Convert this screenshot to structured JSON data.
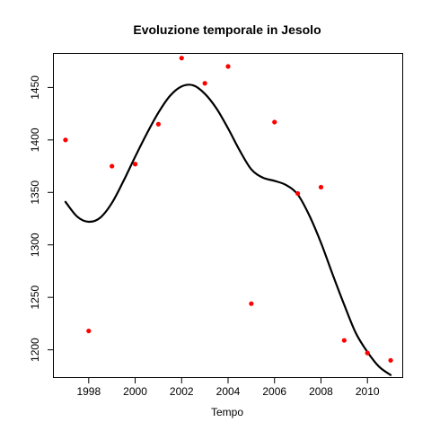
{
  "chart_data": {
    "type": "scatter",
    "title": "Evoluzione temporale in Jesolo",
    "xlabel": "Tempo",
    "ylabel": "",
    "xlim": [
      1996.5,
      2011.5
    ],
    "ylim": [
      1174,
      1482
    ],
    "x_ticks": [
      1998,
      2000,
      2002,
      2004,
      2006,
      2008,
      2010
    ],
    "y_ticks": [
      1200,
      1250,
      1300,
      1350,
      1400,
      1450
    ],
    "grid": false,
    "colors": {
      "points": "#ff0000",
      "line": "#000000"
    },
    "points": {
      "x": [
        1997,
        1998,
        1999,
        2000,
        2001,
        2002,
        2003,
        2004,
        2005,
        2006,
        2007,
        2008,
        2009,
        2010,
        2011
      ],
      "y": [
        1400,
        1218,
        1375,
        1377,
        1415,
        1478,
        1454,
        1470,
        1244,
        1417,
        1349,
        1355,
        1209,
        1197,
        1190
      ]
    },
    "smooth_line": {
      "x": [
        1997,
        1997.5,
        1998,
        1998.5,
        1999,
        1999.5,
        2000,
        2000.5,
        2001,
        2001.5,
        2002,
        2002.5,
        2003,
        2003.5,
        2004,
        2004.5,
        2005,
        2005.5,
        2006,
        2006.5,
        2007,
        2007.5,
        2008,
        2008.5,
        2009,
        2009.5,
        2010,
        2010.5,
        2011
      ],
      "y": [
        1341,
        1327,
        1322,
        1326,
        1340,
        1361,
        1384,
        1406,
        1426,
        1442,
        1451,
        1452,
        1444,
        1430,
        1411,
        1390,
        1372,
        1364,
        1361,
        1357,
        1348,
        1328,
        1302,
        1272,
        1243,
        1216,
        1198,
        1184,
        1176
      ]
    }
  }
}
